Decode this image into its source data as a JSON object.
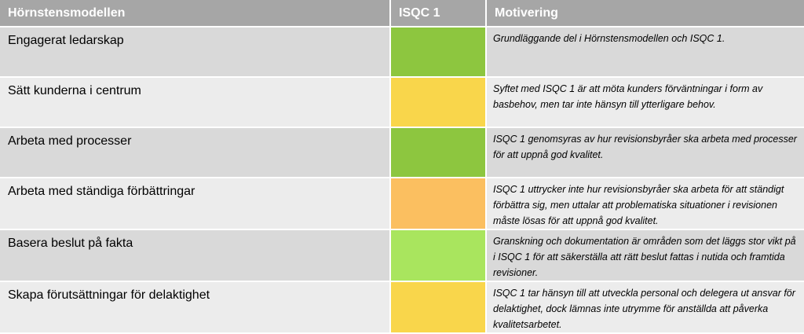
{
  "header": {
    "col1": "Hörnstensmodellen",
    "col2": "ISQC 1",
    "col3": "Motivering"
  },
  "colors": {
    "header_bg": "#a6a6a6",
    "green": "#8dc63f",
    "yellow": "#f9d64b",
    "orange": "#fbbf60",
    "light_green": "#a9e55e"
  },
  "rows": [
    {
      "area": "Engagerat ledarskap",
      "rating": "green",
      "motivation": "Grundläggande del i Hörnstensmodellen och ISQC 1."
    },
    {
      "area": "Sätt kunderna i centrum",
      "rating": "yellow",
      "motivation": "Syftet med ISQC 1 är att möta kunders förväntningar i form av basbehov, men tar inte hänsyn till ytterligare behov."
    },
    {
      "area": "Arbeta med processer",
      "rating": "green",
      "motivation": "ISQC 1 genomsyras av hur revisionsbyråer ska arbeta med processer för att uppnå god kvalitet."
    },
    {
      "area": "Arbeta med ständiga förbättringar",
      "rating": "orange",
      "motivation": "ISQC 1 uttrycker inte hur revisionsbyråer ska arbeta för att ständigt förbättra sig, men uttalar att problematiska situationer i revisionen måste lösas för att uppnå god kvalitet."
    },
    {
      "area": "Basera beslut på fakta",
      "rating": "light_green",
      "motivation": "Granskning och dokumentation är områden som det läggs stor vikt på i ISQC 1 för att säkerställa att rätt beslut fattas i nutida och framtida revisioner."
    },
    {
      "area": "Skapa förutsättningar för delaktighet",
      "rating": "yellow",
      "motivation": "ISQC 1 tar hänsyn till att utveckla personal och delegera ut ansvar för delaktighet, dock lämnas inte utrymme för anställda att påverka kvalitetsarbetet."
    }
  ]
}
